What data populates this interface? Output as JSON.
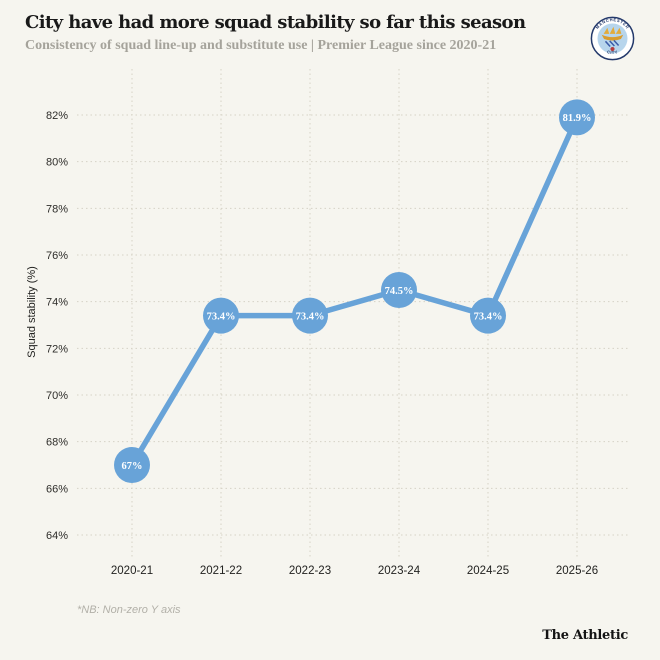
{
  "header": {
    "title": "City have had more squad stability so far this season",
    "subtitle": "Consistency of squad line-up and substitute use | Premier League since 2020-21",
    "badge": {
      "name": "manchester-city-crest",
      "top_text": "MANCHESTER",
      "bottom_text": "CITY"
    }
  },
  "chart_data": {
    "type": "line",
    "title": "City have had more squad stability so far this season",
    "subtitle": "Consistency of squad line-up and substitute use | Premier League since 2020-21",
    "categories": [
      "2020-21",
      "2021-22",
      "2022-23",
      "2023-24",
      "2024-25",
      "2025-26"
    ],
    "values": [
      67,
      73.4,
      73.4,
      74.5,
      73.4,
      81.9
    ],
    "point_labels": [
      "67%",
      "73.4%",
      "73.4%",
      "74.5%",
      "73.4%",
      "81.9%"
    ],
    "xlabel": "",
    "ylabel": "Squad stability (%)",
    "ylim": [
      64,
      82
    ],
    "ytick_step": 2,
    "ytick_suffix": "%",
    "grid": "dotted",
    "legend": "none",
    "line_color": "#68a3d8",
    "grid_color": "#d5d2c6"
  },
  "footnote": "*NB: Non-zero Y axis",
  "attribution": "The Athletic",
  "colors": {
    "background": "#f6f5ef",
    "accent_blue": "#68a3d8",
    "title_text": "#191919",
    "subtitle_gray": "#a5a39b",
    "grid_gray": "#d5d2c6",
    "badge_navy": "#24396b",
    "badge_sky": "#b7d5ec",
    "badge_gold": "#e3ab3a"
  }
}
